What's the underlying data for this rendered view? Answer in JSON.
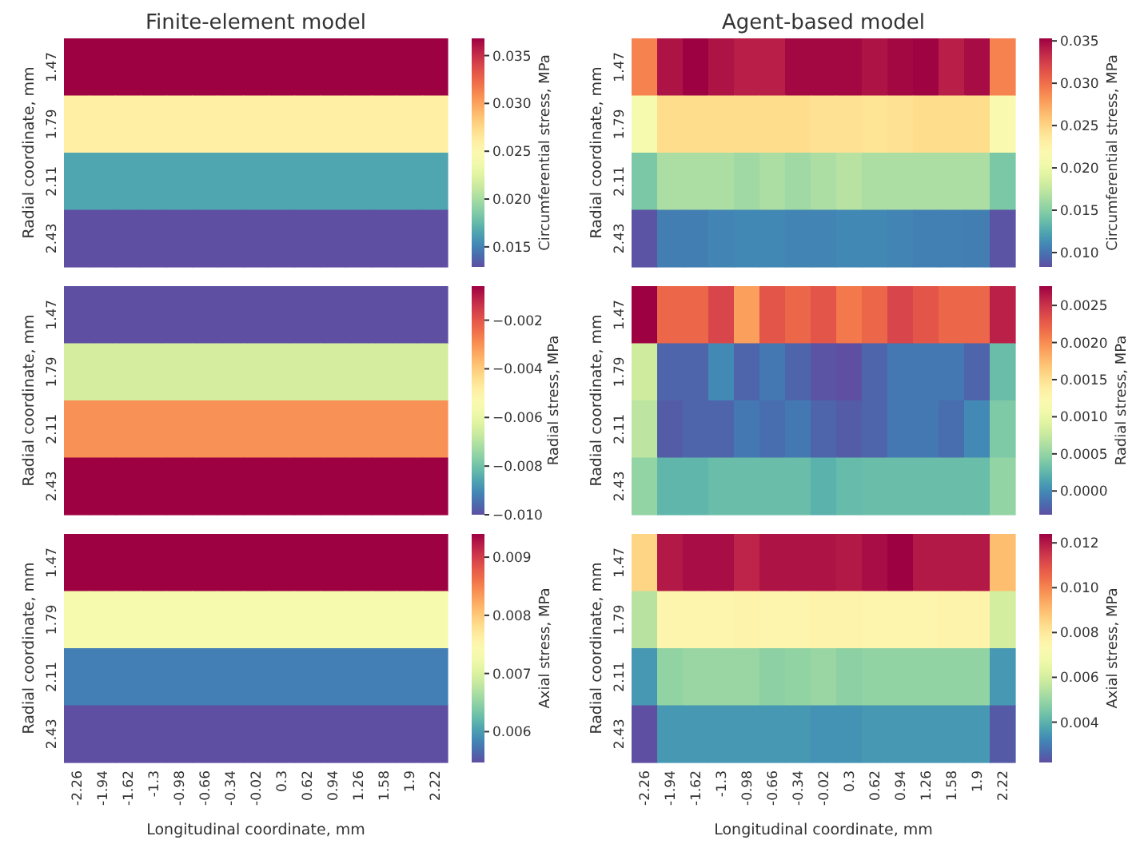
{
  "chart_data": [
    {
      "type": "heatmap",
      "title": "Finite-element model",
      "ylabel": "Radial coordinate, mm",
      "clabel": "Circumferential stress, MPa",
      "tick_labels": "y",
      "categories": [
        "-2.26",
        "-1.94",
        "-1.62",
        "-1.3",
        "-0.98",
        "-0.66",
        "-0.34",
        "-0.02",
        "0.3",
        "0.62",
        "0.94",
        "1.26",
        "1.58",
        "1.9",
        "2.22"
      ],
      "y_categories": [
        "1.47",
        "1.79",
        "2.11",
        "2.43"
      ],
      "cells": [
        [
          0.0368,
          0.0368,
          0.0368,
          0.0368,
          0.0368,
          0.0368,
          0.0368,
          0.0368,
          0.0368,
          0.0368,
          0.0368,
          0.0368,
          0.0368,
          0.0368,
          0.0368
        ],
        [
          0.026,
          0.026,
          0.026,
          0.026,
          0.026,
          0.026,
          0.026,
          0.026,
          0.026,
          0.026,
          0.026,
          0.026,
          0.026,
          0.026,
          0.026
        ],
        [
          0.0165,
          0.0165,
          0.0165,
          0.0165,
          0.0165,
          0.0165,
          0.0165,
          0.0165,
          0.0165,
          0.0165,
          0.0165,
          0.0165,
          0.0165,
          0.0165,
          0.0165
        ],
        [
          0.0129,
          0.0129,
          0.0129,
          0.0129,
          0.0129,
          0.0129,
          0.0129,
          0.0129,
          0.0129,
          0.0129,
          0.0129,
          0.0129,
          0.0129,
          0.0129,
          0.0129
        ]
      ],
      "clim": [
        0.0129,
        0.0368
      ],
      "cticks": [
        {
          "value": 0.015,
          "label": "0.015"
        },
        {
          "value": 0.02,
          "label": "0.020"
        },
        {
          "value": 0.025,
          "label": "0.025"
        },
        {
          "value": 0.03,
          "label": "0.030"
        },
        {
          "value": 0.035,
          "label": "0.035"
        }
      ]
    },
    {
      "type": "heatmap",
      "title": "Agent-based model",
      "ylabel": "Radial coordinate, mm",
      "clabel": "Circumferential stress, MPa",
      "tick_labels": "y",
      "categories": [
        "-2.26",
        "-1.94",
        "-1.62",
        "-1.3",
        "-0.98",
        "-0.66",
        "-0.34",
        "-0.02",
        "0.3",
        "0.62",
        "0.94",
        "1.26",
        "1.58",
        "1.9",
        "2.22"
      ],
      "y_categories": [
        "1.47",
        "1.79",
        "2.11",
        "2.43"
      ],
      "cells": [
        [
          0.029,
          0.0345,
          0.0353,
          0.0345,
          0.034,
          0.034,
          0.035,
          0.035,
          0.035,
          0.0345,
          0.035,
          0.0352,
          0.034,
          0.0348,
          0.029
        ],
        [
          0.021,
          0.0245,
          0.0245,
          0.0245,
          0.0245,
          0.0245,
          0.0245,
          0.0242,
          0.0242,
          0.024,
          0.0242,
          0.0245,
          0.0245,
          0.0245,
          0.0215
        ],
        [
          0.0145,
          0.0165,
          0.0165,
          0.0165,
          0.016,
          0.0165,
          0.016,
          0.0165,
          0.017,
          0.0165,
          0.0165,
          0.0165,
          0.0165,
          0.0165,
          0.0145
        ],
        [
          0.0085,
          0.0105,
          0.0105,
          0.0108,
          0.011,
          0.011,
          0.0108,
          0.0108,
          0.011,
          0.011,
          0.0108,
          0.0106,
          0.0106,
          0.0105,
          0.0085
        ]
      ],
      "clim": [
        0.0083,
        0.0353
      ],
      "cticks": [
        {
          "value": 0.01,
          "label": "0.010"
        },
        {
          "value": 0.015,
          "label": "0.015"
        },
        {
          "value": 0.02,
          "label": "0.020"
        },
        {
          "value": 0.025,
          "label": "0.025"
        },
        {
          "value": 0.03,
          "label": "0.030"
        },
        {
          "value": 0.035,
          "label": "0.035"
        }
      ]
    },
    {
      "type": "heatmap",
      "ylabel": "Radial coordinate, mm",
      "clabel": "Radial stress, MPa",
      "tick_labels": "y",
      "categories": [
        "-2.26",
        "-1.94",
        "-1.62",
        "-1.3",
        "-0.98",
        "-0.66",
        "-0.34",
        "-0.02",
        "0.3",
        "0.62",
        "0.94",
        "1.26",
        "1.58",
        "1.9",
        "2.22"
      ],
      "y_categories": [
        "1.47",
        "1.79",
        "2.11",
        "2.43"
      ],
      "cells": [
        [
          -0.01,
          -0.01,
          -0.01,
          -0.01,
          -0.01,
          -0.01,
          -0.01,
          -0.01,
          -0.01,
          -0.01,
          -0.01,
          -0.01,
          -0.01,
          -0.01,
          -0.01
        ],
        [
          -0.0065,
          -0.0065,
          -0.0065,
          -0.0065,
          -0.0065,
          -0.0065,
          -0.0065,
          -0.0065,
          -0.0065,
          -0.0065,
          -0.0065,
          -0.0065,
          -0.0065,
          -0.0065,
          -0.0065
        ],
        [
          -0.003,
          -0.003,
          -0.003,
          -0.003,
          -0.003,
          -0.003,
          -0.003,
          -0.003,
          -0.003,
          -0.003,
          -0.003,
          -0.003,
          -0.003,
          -0.003,
          -0.003
        ],
        [
          -0.0006,
          -0.0006,
          -0.0006,
          -0.0006,
          -0.0006,
          -0.0006,
          -0.0006,
          -0.0006,
          -0.0006,
          -0.0006,
          -0.0006,
          -0.0006,
          -0.0006,
          -0.0006,
          -0.0006
        ]
      ],
      "clim": [
        -0.01,
        -0.0006
      ],
      "cticks": [
        {
          "value": -0.01,
          "label": "−0.010"
        },
        {
          "value": -0.008,
          "label": "−0.008"
        },
        {
          "value": -0.006,
          "label": "−0.006"
        },
        {
          "value": -0.004,
          "label": "−0.004"
        },
        {
          "value": -0.002,
          "label": "−0.002"
        }
      ]
    },
    {
      "type": "heatmap",
      "ylabel": "Radial coordinate, mm",
      "clabel": "Radial stress, MPa",
      "tick_labels": "y",
      "categories": [
        "-2.26",
        "-1.94",
        "-1.62",
        "-1.3",
        "-0.98",
        "-0.66",
        "-0.34",
        "-0.02",
        "0.3",
        "0.62",
        "0.94",
        "1.26",
        "1.58",
        "1.9",
        "2.22"
      ],
      "y_categories": [
        "1.47",
        "1.79",
        "2.11",
        "2.43"
      ],
      "cells": [
        [
          0.00276,
          0.0022,
          0.0022,
          0.0024,
          0.0019,
          0.0023,
          0.0022,
          0.0023,
          0.0021,
          0.0022,
          0.0024,
          0.0023,
          0.0022,
          0.0022,
          0.0026
        ],
        [
          0.0008,
          -0.0002,
          -0.0002,
          0.0,
          -0.0002,
          -0.0001,
          -0.0002,
          -0.0003,
          -0.00032,
          -0.0002,
          -0.0001,
          -0.0001,
          -0.0001,
          -0.0002,
          0.0003
        ],
        [
          0.0007,
          -0.00025,
          -0.0002,
          -0.0002,
          -0.0001,
          -0.00015,
          -0.0001,
          -0.0002,
          -0.00025,
          -0.0002,
          -0.0001,
          -0.0001,
          -0.00015,
          0.0,
          0.0004
        ],
        [
          0.0005,
          0.00025,
          0.00025,
          0.0003,
          0.0003,
          0.0003,
          0.0003,
          0.00022,
          0.00028,
          0.0003,
          0.0003,
          0.0003,
          0.0003,
          0.0003,
          0.0005
        ]
      ],
      "clim": [
        -0.00032,
        0.00276
      ],
      "cticks": [
        {
          "value": 0,
          "label": "0.0000"
        },
        {
          "value": 0.0005,
          "label": "0.0005"
        },
        {
          "value": 0.001,
          "label": "0.0010"
        },
        {
          "value": 0.0015,
          "label": "0.0015"
        },
        {
          "value": 0.002,
          "label": "0.0020"
        },
        {
          "value": 0.0025,
          "label": "0.0025"
        }
      ]
    },
    {
      "type": "heatmap",
      "ylabel": "Radial coordinate, mm",
      "xlabel": "Longitudinal coordinate, mm",
      "clabel": "Axial stress, MPa",
      "categories": [
        "-2.26",
        "-1.94",
        "-1.62",
        "-1.3",
        "-0.98",
        "-0.66",
        "-0.34",
        "-0.02",
        "0.3",
        "0.62",
        "0.94",
        "1.26",
        "1.58",
        "1.9",
        "2.22"
      ],
      "y_categories": [
        "1.47",
        "1.79",
        "2.11",
        "2.43"
      ],
      "cells": [
        [
          0.0094,
          0.0094,
          0.0094,
          0.0094,
          0.0094,
          0.0094,
          0.0094,
          0.0094,
          0.0094,
          0.0094,
          0.0094,
          0.0094,
          0.0094,
          0.0094,
          0.0094
        ],
        [
          0.0073,
          0.0073,
          0.0073,
          0.0073,
          0.0073,
          0.0073,
          0.0073,
          0.0073,
          0.0073,
          0.0073,
          0.0073,
          0.0073,
          0.0073,
          0.0073,
          0.0073
        ],
        [
          0.0058,
          0.0058,
          0.0058,
          0.0058,
          0.0058,
          0.0058,
          0.0058,
          0.0058,
          0.0058,
          0.0058,
          0.0058,
          0.0058,
          0.0058,
          0.0058,
          0.0058
        ],
        [
          0.00547,
          0.00547,
          0.00547,
          0.00547,
          0.00547,
          0.00547,
          0.00547,
          0.00547,
          0.00547,
          0.00547,
          0.00547,
          0.00547,
          0.00547,
          0.00547,
          0.00547
        ]
      ],
      "clim": [
        0.00547,
        0.0094
      ],
      "cticks": [
        {
          "value": 0.006,
          "label": "0.006"
        },
        {
          "value": 0.007,
          "label": "0.007"
        },
        {
          "value": 0.008,
          "label": "0.008"
        },
        {
          "value": 0.009,
          "label": "0.009"
        }
      ]
    },
    {
      "type": "heatmap",
      "ylabel": "Radial coordinate, mm",
      "xlabel": "Longitudinal coordinate, mm",
      "clabel": "Axial stress, MPa",
      "categories": [
        "-2.26",
        "-1.94",
        "-1.62",
        "-1.3",
        "-0.98",
        "-0.66",
        "-0.34",
        "-0.02",
        "0.3",
        "0.62",
        "0.94",
        "1.26",
        "1.58",
        "1.9",
        "2.22"
      ],
      "y_categories": [
        "1.47",
        "1.79",
        "2.11",
        "2.43"
      ],
      "cells": [
        [
          0.0085,
          0.012,
          0.0122,
          0.0122,
          0.0118,
          0.0121,
          0.0121,
          0.0121,
          0.012,
          0.0122,
          0.0124,
          0.012,
          0.012,
          0.012,
          0.009
        ],
        [
          0.0055,
          0.0075,
          0.0075,
          0.0075,
          0.0076,
          0.0075,
          0.0075,
          0.0076,
          0.0076,
          0.0075,
          0.0075,
          0.0075,
          0.0076,
          0.0076,
          0.006
        ],
        [
          0.0035,
          0.0049,
          0.005,
          0.005,
          0.005,
          0.0048,
          0.0049,
          0.005,
          0.0048,
          0.0049,
          0.0049,
          0.0049,
          0.0049,
          0.0049,
          0.0035
        ],
        [
          0.0022,
          0.0035,
          0.0035,
          0.0035,
          0.0035,
          0.0035,
          0.0035,
          0.0034,
          0.0034,
          0.0035,
          0.0035,
          0.0035,
          0.0035,
          0.0035,
          0.0024
        ]
      ],
      "clim": [
        0.0022,
        0.0124
      ],
      "cticks": [
        {
          "value": 0.004,
          "label": "0.004"
        },
        {
          "value": 0.006,
          "label": "0.006"
        },
        {
          "value": 0.008,
          "label": "0.008"
        },
        {
          "value": 0.01,
          "label": "0.010"
        },
        {
          "value": 0.012,
          "label": "0.012"
        }
      ]
    }
  ]
}
